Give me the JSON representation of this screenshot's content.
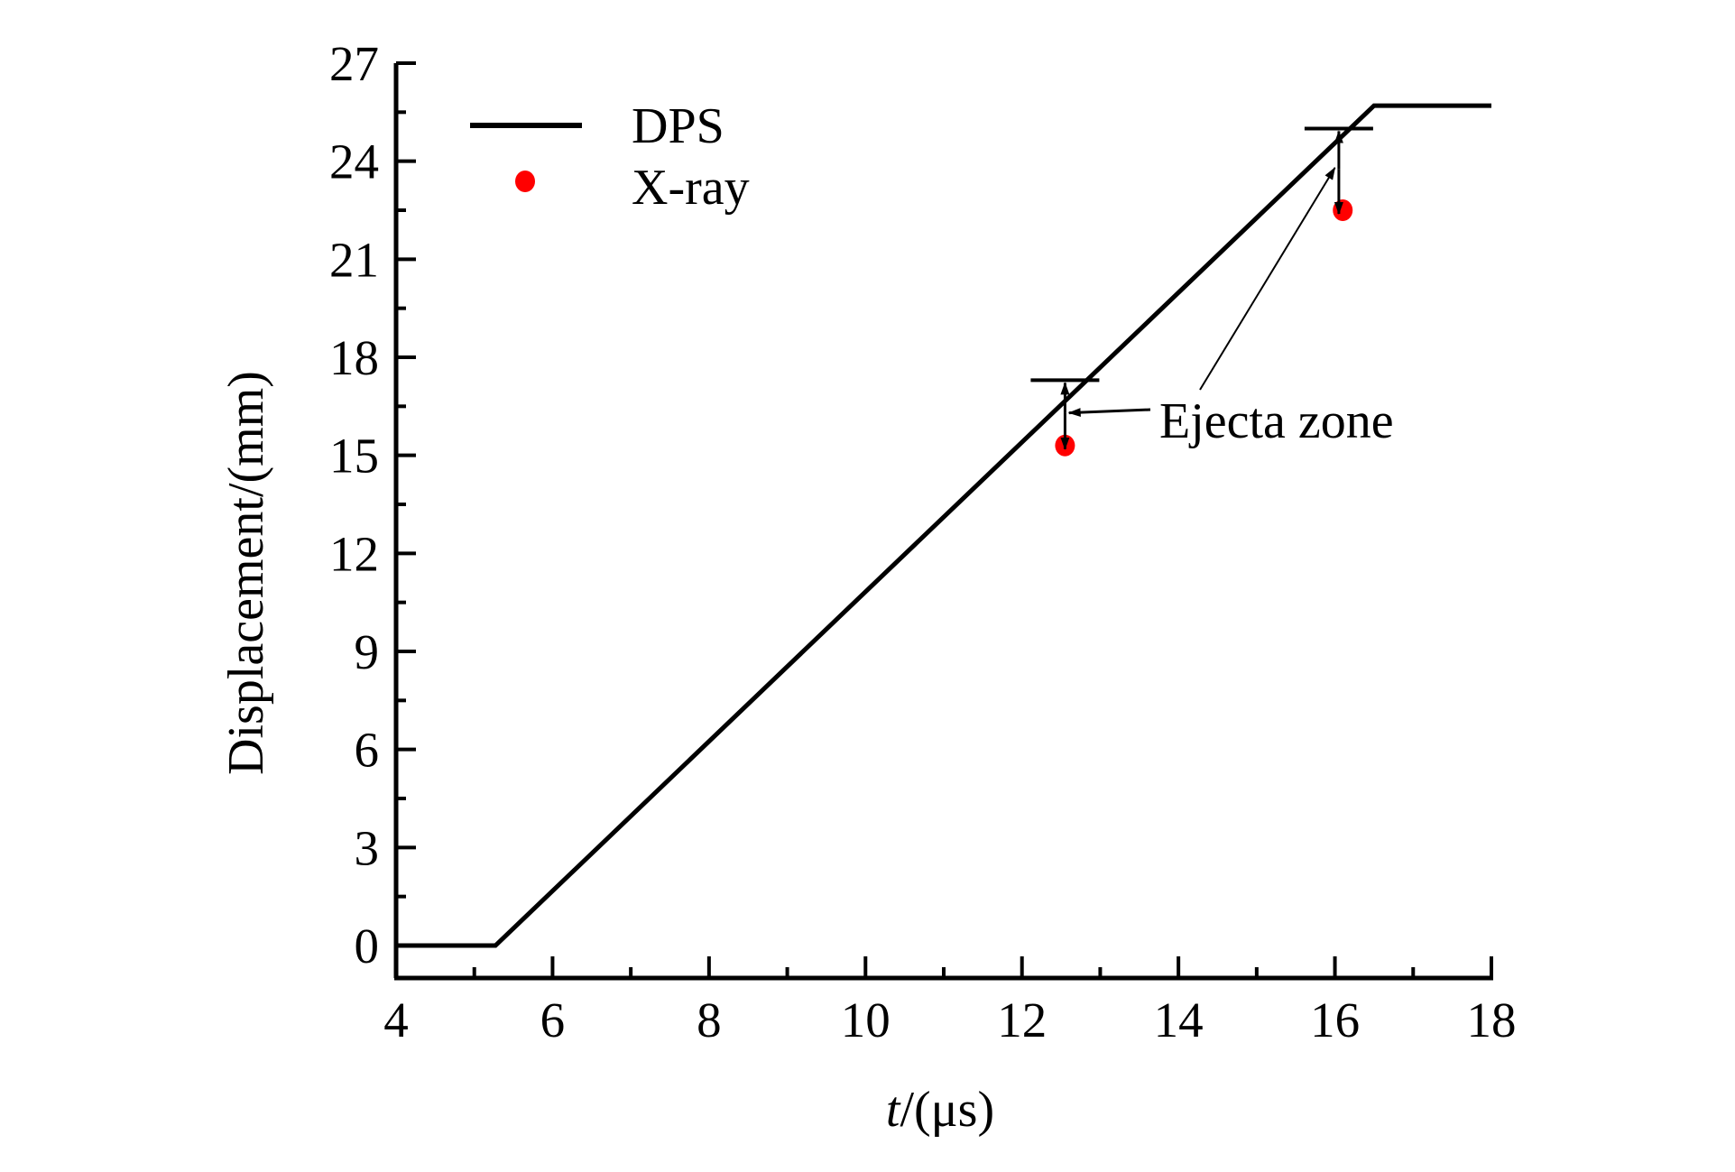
{
  "chart_data": {
    "type": "line",
    "title": "",
    "xlabel_italic": "t",
    "xlabel_rest": "/(μs)",
    "ylabel": "Displacement/(mm)",
    "xlim": [
      4,
      18
    ],
    "ylim": [
      -1,
      27
    ],
    "xticks": [
      4,
      6,
      8,
      10,
      12,
      14,
      16,
      18
    ],
    "yticks": [
      0,
      3,
      6,
      9,
      12,
      15,
      18,
      21,
      24,
      27
    ],
    "xtick_labels": [
      "4",
      "6",
      "8",
      "10",
      "12",
      "14",
      "16",
      "18"
    ],
    "ytick_labels": [
      "0",
      "3",
      "6",
      "9",
      "12",
      "15",
      "18",
      "21",
      "24",
      "27"
    ],
    "grid": false,
    "legend_position": "top-left",
    "series": [
      {
        "name": "DPS",
        "type": "line",
        "color": "#000000",
        "x": [
          4,
          5.27,
          16.5,
          18
        ],
        "y": [
          0,
          0,
          25.7,
          25.7
        ]
      },
      {
        "name": "X-ray",
        "type": "scatter",
        "color": "#ff0000",
        "x": [
          12.55,
          16.1
        ],
        "y": [
          15.3,
          22.5
        ]
      }
    ],
    "annotations": {
      "text": "Ejecta zone",
      "zones": [
        {
          "x": 12.55,
          "top": 17.3,
          "bottom": 15.3
        },
        {
          "x": 16.05,
          "top": 25.0,
          "bottom": 22.5
        }
      ]
    }
  }
}
